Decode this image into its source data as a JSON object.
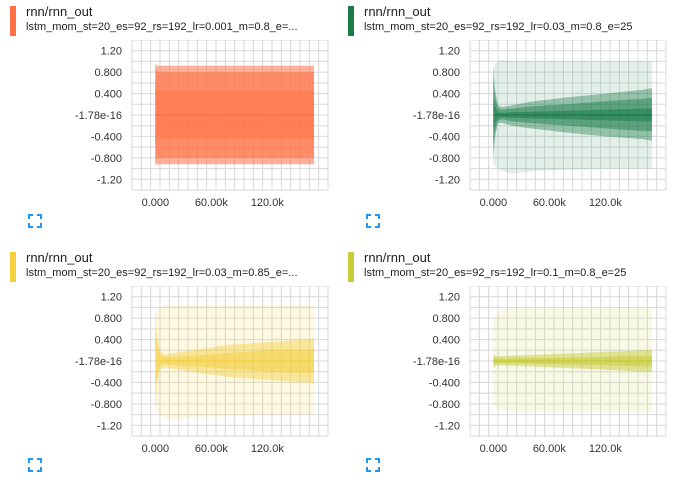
{
  "colors": {
    "orange": "#ff7043",
    "green": "#1b7c4a",
    "yellow": "#f4d03f",
    "olive": "#c6cc3a",
    "expand_icon": "#2196f3",
    "grid": "#d8d8d8"
  },
  "chart_data": [
    {
      "type": "area",
      "title": "rnn/rnn_out",
      "subtitle": "lstm_mom_st=20_es=92_rs=192_lr=0.001_m=0.8_e=...",
      "color": "#ff7043",
      "y_ticks": [
        "1.20",
        "0.800",
        "0.400",
        "-1.78e-16",
        "-0.400",
        "-0.800",
        "-1.20"
      ],
      "x_ticks": [
        "0.000",
        "60.00k",
        "120.0k"
      ],
      "ylim": [
        -1.4,
        1.4
      ],
      "xlim": [
        -25000,
        185000
      ],
      "x": [
        0,
        2000,
        5000,
        10000,
        40000,
        80000,
        120000,
        160000,
        170000
      ],
      "bands": [
        {
          "lower": [
            -0.95,
            -0.92,
            -0.92,
            -0.92,
            -0.92,
            -0.92,
            -0.92,
            -0.92,
            -0.92
          ],
          "upper": [
            0.95,
            0.92,
            0.92,
            0.92,
            0.92,
            0.92,
            0.92,
            0.92,
            0.92
          ],
          "opacity": 0.55
        },
        {
          "lower": [
            -0.88,
            -0.8,
            -0.8,
            -0.8,
            -0.8,
            -0.8,
            -0.8,
            -0.8,
            -0.8
          ],
          "upper": [
            0.88,
            0.8,
            0.8,
            0.8,
            0.8,
            0.8,
            0.8,
            0.8,
            0.8
          ],
          "opacity": 0.55
        },
        {
          "lower": [
            -0.6,
            -0.45,
            -0.45,
            -0.45,
            -0.45,
            -0.45,
            -0.45,
            -0.45,
            -0.45
          ],
          "upper": [
            0.6,
            0.45,
            0.45,
            0.45,
            0.45,
            0.45,
            0.45,
            0.45,
            0.45
          ],
          "opacity": 0.45
        }
      ],
      "median": [
        0,
        0,
        0,
        0,
        0,
        0,
        0,
        0,
        0
      ]
    },
    {
      "type": "area",
      "title": "rnn/rnn_out",
      "subtitle": "lstm_mom_st=20_es=92_rs=192_lr=0.03_m=0.8_e=25",
      "color": "#1b7c4a",
      "y_ticks": [
        "1.20",
        "0.800",
        "0.400",
        "-1.78e-16",
        "-0.400",
        "-0.800",
        "-1.20"
      ],
      "x_ticks": [
        "0.000",
        "60.00k",
        "120.0k"
      ],
      "ylim": [
        -1.4,
        1.4
      ],
      "xlim": [
        -25000,
        185000
      ],
      "x": [
        0,
        2000,
        5000,
        10000,
        20000,
        40000,
        80000,
        120000,
        160000,
        170000
      ],
      "bands": [
        {
          "lower": [
            -0.9,
            -0.95,
            -1.0,
            -1.05,
            -1.1,
            -1.05,
            -1.02,
            -1.0,
            -1.0,
            -1.0
          ],
          "upper": [
            0.9,
            0.95,
            1.0,
            1.02,
            1.0,
            1.0,
            1.0,
            1.0,
            1.0,
            1.0
          ],
          "opacity": 0.12
        },
        {
          "lower": [
            -0.85,
            -0.4,
            -0.15,
            -0.15,
            -0.2,
            -0.25,
            -0.33,
            -0.4,
            -0.45,
            -0.48
          ],
          "upper": [
            0.92,
            0.45,
            0.18,
            0.15,
            0.18,
            0.25,
            0.33,
            0.4,
            0.47,
            0.5
          ],
          "opacity": 0.4
        },
        {
          "lower": [
            -0.6,
            -0.3,
            -0.1,
            -0.08,
            -0.12,
            -0.15,
            -0.2,
            -0.25,
            -0.3,
            -0.3
          ],
          "upper": [
            0.65,
            0.32,
            0.12,
            0.1,
            0.12,
            0.16,
            0.2,
            0.26,
            0.3,
            0.32
          ],
          "opacity": 0.45
        },
        {
          "lower": [
            -0.3,
            -0.15,
            -0.05,
            -0.04,
            -0.05,
            -0.06,
            -0.08,
            -0.1,
            -0.12,
            -0.12
          ],
          "upper": [
            0.3,
            0.15,
            0.05,
            0.04,
            0.05,
            0.06,
            0.08,
            0.1,
            0.12,
            0.12
          ],
          "opacity": 0.55
        }
      ],
      "median": [
        0,
        0,
        0,
        0,
        0,
        0,
        0,
        0,
        0,
        0
      ]
    },
    {
      "type": "area",
      "title": "rnn/rnn_out",
      "subtitle": "lstm_mom_st=20_es=92_rs=192_lr=0.03_m=0.85_e=...",
      "color": "#f4d03f",
      "y_ticks": [
        "1.20",
        "0.800",
        "0.400",
        "-1.78e-16",
        "-0.400",
        "-0.800",
        "-1.20"
      ],
      "x_ticks": [
        "0.000",
        "60.00k",
        "120.0k"
      ],
      "ylim": [
        -1.4,
        1.4
      ],
      "xlim": [
        -25000,
        185000
      ],
      "x": [
        0,
        2000,
        5000,
        10000,
        20000,
        40000,
        80000,
        120000,
        160000,
        170000
      ],
      "bands": [
        {
          "lower": [
            -0.9,
            -0.95,
            -1.0,
            -1.05,
            -1.1,
            -1.05,
            -1.02,
            -1.0,
            -1.0,
            -1.0
          ],
          "upper": [
            0.9,
            0.95,
            1.0,
            1.05,
            1.05,
            1.05,
            1.05,
            1.05,
            1.05,
            1.05
          ],
          "opacity": 0.15
        },
        {
          "lower": [
            -0.9,
            -0.4,
            -0.15,
            -0.12,
            -0.15,
            -0.2,
            -0.3,
            -0.35,
            -0.4,
            -0.42
          ],
          "upper": [
            0.9,
            0.45,
            0.18,
            0.12,
            0.15,
            0.2,
            0.3,
            0.35,
            0.4,
            0.42
          ],
          "opacity": 0.45
        },
        {
          "lower": [
            -0.5,
            -0.25,
            -0.08,
            -0.06,
            -0.08,
            -0.1,
            -0.15,
            -0.2,
            -0.22,
            -0.22
          ],
          "upper": [
            0.55,
            0.28,
            0.1,
            0.08,
            0.08,
            0.1,
            0.15,
            0.2,
            0.22,
            0.22
          ],
          "opacity": 0.5
        }
      ],
      "median": [
        0,
        0,
        0,
        0,
        0,
        0,
        0,
        0,
        0,
        0
      ]
    },
    {
      "type": "area",
      "title": "rnn/rnn_out",
      "subtitle": "lstm_mom_st=20_es=92_rs=192_lr=0.1_m=0.8_e=25",
      "color": "#c6cc3a",
      "y_ticks": [
        "1.20",
        "0.800",
        "0.400",
        "-1.78e-16",
        "-0.400",
        "-0.800",
        "-1.20"
      ],
      "x_ticks": [
        "0.000",
        "60.00k",
        "120.0k"
      ],
      "ylim": [
        -1.4,
        1.4
      ],
      "xlim": [
        -25000,
        185000
      ],
      "x": [
        0,
        2000,
        5000,
        10000,
        20000,
        40000,
        80000,
        120000,
        160000,
        170000
      ],
      "bands": [
        {
          "lower": [
            -0.8,
            -0.85,
            -0.9,
            -0.92,
            -0.95,
            -0.95,
            -0.95,
            -0.95,
            -0.95,
            -0.95
          ],
          "upper": [
            0.8,
            0.85,
            0.9,
            0.95,
            1.0,
            1.0,
            1.0,
            1.0,
            1.0,
            1.0
          ],
          "opacity": 0.12
        },
        {
          "lower": [
            -0.12,
            -0.1,
            -0.08,
            -0.08,
            -0.09,
            -0.1,
            -0.13,
            -0.16,
            -0.2,
            -0.2
          ],
          "upper": [
            0.12,
            0.1,
            0.09,
            0.09,
            0.1,
            0.11,
            0.14,
            0.17,
            0.2,
            0.21
          ],
          "opacity": 0.5
        },
        {
          "lower": [
            -0.06,
            -0.05,
            -0.04,
            -0.04,
            -0.04,
            -0.05,
            -0.06,
            -0.08,
            -0.1,
            -0.1
          ],
          "upper": [
            0.06,
            0.05,
            0.04,
            0.04,
            0.05,
            0.05,
            0.06,
            0.08,
            0.1,
            0.1
          ],
          "opacity": 0.55
        }
      ],
      "median": [
        0,
        0,
        0,
        0,
        0,
        0,
        0,
        0,
        0,
        0
      ]
    }
  ]
}
